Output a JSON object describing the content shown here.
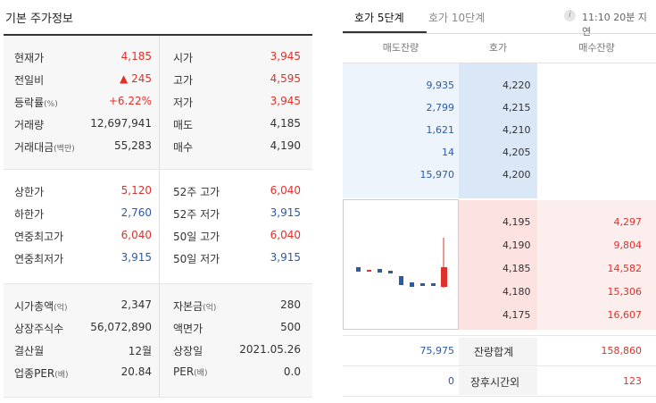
{
  "left": {
    "title": "기본 주가정보",
    "section1": [
      {
        "l1": "현재가",
        "l1s": "",
        "v1": "4,185",
        "c1": "red",
        "l2": "시가",
        "l2s": "",
        "v2": "3,945",
        "c2": "red"
      },
      {
        "l1": "전일비",
        "l1s": "",
        "v1": "▲ 245",
        "c1": "red",
        "l2": "고가",
        "l2s": "",
        "v2": "4,595",
        "c2": "red"
      },
      {
        "l1": "등락률",
        "l1s": "(%)",
        "v1": "+6.22%",
        "c1": "red",
        "l2": "저가",
        "l2s": "",
        "v2": "3,945",
        "c2": "red"
      },
      {
        "l1": "거래량",
        "l1s": "",
        "v1": "12,697,941",
        "c1": "dark",
        "l2": "매도",
        "l2s": "",
        "v2": "4,185",
        "c2": "dark"
      },
      {
        "l1": "거래대금",
        "l1s": "(백만)",
        "v1": "55,283",
        "c1": "dark",
        "l2": "매수",
        "l2s": "",
        "v2": "4,190",
        "c2": "dark"
      }
    ],
    "section2": [
      {
        "l1": "상한가",
        "l1s": "",
        "v1": "5,120",
        "c1": "red",
        "l2": "52주 고가",
        "l2s": "",
        "v2": "6,040",
        "c2": "red"
      },
      {
        "l1": "하한가",
        "l1s": "",
        "v1": "2,760",
        "c1": "blue",
        "l2": "52주 저가",
        "l2s": "",
        "v2": "3,915",
        "c2": "blue"
      },
      {
        "l1": "연중최고가",
        "l1s": "",
        "v1": "6,040",
        "c1": "red",
        "l2": "50일 고가",
        "l2s": "",
        "v2": "6,040",
        "c2": "red"
      },
      {
        "l1": "연중최저가",
        "l1s": "",
        "v1": "3,915",
        "c1": "blue",
        "l2": "50일 저가",
        "l2s": "",
        "v2": "3,915",
        "c2": "blue"
      }
    ],
    "section3": [
      {
        "l1": "시가총액",
        "l1s": "(억)",
        "v1": "2,347",
        "c1": "dark",
        "l2": "자본금",
        "l2s": "(억)",
        "v2": "280",
        "c2": "dark"
      },
      {
        "l1": "상장주식수",
        "l1s": "",
        "v1": "56,072,890",
        "c1": "dark",
        "l2": "액면가",
        "l2s": "",
        "v2": "500",
        "c2": "dark"
      },
      {
        "l1": "결산월",
        "l1s": "",
        "v1": "12월",
        "c1": "dark",
        "l2": "상장일",
        "l2s": "",
        "v2": "2021.05.26",
        "c2": "dark"
      },
      {
        "l1": "업종PER",
        "l1s": "(배)",
        "v1": "20.84",
        "c1": "dark",
        "l2": "PER",
        "l2s": "(배)",
        "v2": "0.0",
        "c2": "dark"
      }
    ]
  },
  "right": {
    "tabs": [
      "호가 5단계",
      "호가 10단계"
    ],
    "delay_icon": "i",
    "delay_text": "11:10 20분 지연",
    "headers": {
      "ask": "매도잔량",
      "price": "호가",
      "bid": "매수잔량"
    },
    "asks": [
      {
        "vol": "9,935",
        "price": "4,220"
      },
      {
        "vol": "2,799",
        "price": "4,215"
      },
      {
        "vol": "1,621",
        "price": "4,210"
      },
      {
        "vol": "14",
        "price": "4,205"
      },
      {
        "vol": "15,970",
        "price": "4,200"
      }
    ],
    "bids": [
      {
        "price": "4,195",
        "vol": "4,297"
      },
      {
        "price": "4,190",
        "vol": "9,804"
      },
      {
        "price": "4,185",
        "vol": "14,582"
      },
      {
        "price": "4,180",
        "vol": "15,306"
      },
      {
        "price": "4,175",
        "vol": "16,607"
      }
    ],
    "summary": {
      "ask_total": "75,975",
      "label1": "잔량합계",
      "bid_total": "158,860",
      "ask_after": "0",
      "label2": "장후시간외",
      "bid_after": "123"
    },
    "colors": {
      "up": "#e0302a",
      "down": "#2c5aa8"
    }
  }
}
